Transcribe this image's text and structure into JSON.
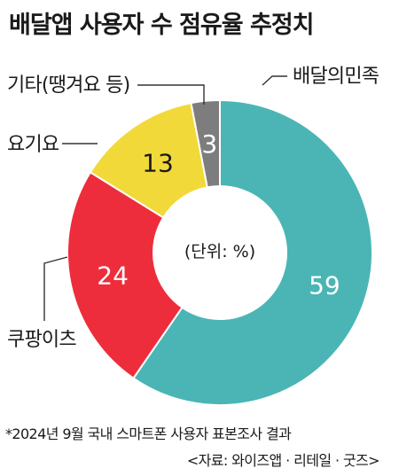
{
  "header": {
    "title": "배달앱 사용자 수 점유율 추정치"
  },
  "chart_data": {
    "type": "pie",
    "categories": [
      "배달의민족",
      "쿠팡이츠",
      "요기요",
      "기타(땡겨요 등)"
    ],
    "values": [
      59,
      24,
      13,
      3
    ],
    "data_labels": [
      "59",
      "24",
      "13",
      "3"
    ],
    "center_label": "(단위: %)",
    "colors": [
      "#4bb5b5",
      "#ee2d3c",
      "#f2d93a",
      "#7d7d7d"
    ],
    "legend": "callouts-outside"
  },
  "footnote": {
    "line1": "*2024년 9월 국내 스마트폰 사용자 표본조사 결과",
    "line2": "<자료: 와이즈앱 · 리테일 · 굿즈>"
  }
}
